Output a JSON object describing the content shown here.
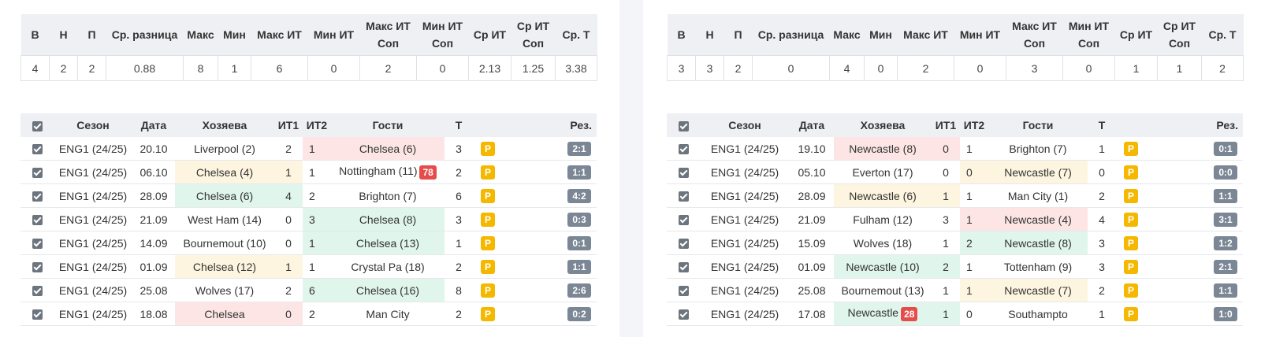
{
  "stats_headers": [
    "В",
    "Н",
    "П",
    "Ср. разница",
    "Макс",
    "Мин",
    "Макс ИТ",
    "Мин ИТ",
    "Макс ИТ Соп",
    "Мин ИТ Соп",
    "Ср ИТ",
    "Ср ИТ Соп",
    "Ср. Т"
  ],
  "match_headers": {
    "season": "Сезон",
    "date": "Дата",
    "home": "Хозяева",
    "it1": "ИТ1",
    "it2": "ИТ2",
    "away": "Гости",
    "t": "Т",
    "res": "Рез."
  },
  "colors": {
    "win": "#e0f5ec",
    "draw": "#fdf5e0",
    "loss": "#fde5e5",
    "p_badge": "#f5b800",
    "result_badge": "#7b8794",
    "minute_badge": "#e74c4c"
  },
  "left": {
    "stats": [
      "4",
      "2",
      "2",
      "0.88",
      "8",
      "1",
      "6",
      "0",
      "2",
      "0",
      "2.13",
      "1.25",
      "3.38"
    ],
    "matches": [
      {
        "season": "ENG1 (24/25)",
        "date": "20.10",
        "home": "Liverpool (2)",
        "it1": "2",
        "it2": "1",
        "away": "Chelsea (6)",
        "minute": "",
        "t": "3",
        "p": "P",
        "res": "2:1",
        "hl": "away",
        "hlc": "red"
      },
      {
        "season": "ENG1 (24/25)",
        "date": "06.10",
        "home": "Chelsea (4)",
        "it1": "1",
        "it2": "1",
        "away": "Nottingham (11)",
        "minute": "78",
        "t": "2",
        "p": "P",
        "res": "1:1",
        "hl": "home",
        "hlc": "yellow"
      },
      {
        "season": "ENG1 (24/25)",
        "date": "28.09",
        "home": "Chelsea (6)",
        "it1": "4",
        "it2": "2",
        "away": "Brighton (7)",
        "minute": "",
        "t": "6",
        "p": "P",
        "res": "4:2",
        "hl": "home",
        "hlc": "green"
      },
      {
        "season": "ENG1 (24/25)",
        "date": "21.09",
        "home": "West Ham (14)",
        "it1": "0",
        "it2": "3",
        "away": "Chelsea (8)",
        "minute": "",
        "t": "3",
        "p": "P",
        "res": "0:3",
        "hl": "away",
        "hlc": "green"
      },
      {
        "season": "ENG1 (24/25)",
        "date": "14.09",
        "home": "Bournemout (10)",
        "it1": "0",
        "it2": "1",
        "away": "Chelsea (13)",
        "minute": "",
        "t": "1",
        "p": "P",
        "res": "0:1",
        "hl": "away",
        "hlc": "green"
      },
      {
        "season": "ENG1 (24/25)",
        "date": "01.09",
        "home": "Chelsea (12)",
        "it1": "1",
        "it2": "1",
        "away": "Crystal Pa (18)",
        "minute": "",
        "t": "2",
        "p": "P",
        "res": "1:1",
        "hl": "home",
        "hlc": "yellow"
      },
      {
        "season": "ENG1 (24/25)",
        "date": "25.08",
        "home": "Wolves (17)",
        "it1": "2",
        "it2": "6",
        "away": "Chelsea (16)",
        "minute": "",
        "t": "8",
        "p": "P",
        "res": "2:6",
        "hl": "away",
        "hlc": "green"
      },
      {
        "season": "ENG1 (24/25)",
        "date": "18.08",
        "home": "Chelsea",
        "it1": "0",
        "it2": "2",
        "away": "Man City",
        "minute": "",
        "t": "2",
        "p": "P",
        "res": "0:2",
        "hl": "home",
        "hlc": "red"
      }
    ]
  },
  "right": {
    "stats": [
      "3",
      "3",
      "2",
      "0",
      "4",
      "0",
      "2",
      "0",
      "3",
      "0",
      "1",
      "1",
      "2"
    ],
    "matches": [
      {
        "season": "ENG1 (24/25)",
        "date": "19.10",
        "home": "Newcastle (8)",
        "it1": "0",
        "it2": "1",
        "away": "Brighton (7)",
        "minute": "",
        "t": "1",
        "p": "P",
        "res": "0:1",
        "hl": "home",
        "hlc": "red"
      },
      {
        "season": "ENG1 (24/25)",
        "date": "05.10",
        "home": "Everton (17)",
        "it1": "0",
        "it2": "0",
        "away": "Newcastle (7)",
        "minute": "",
        "t": "0",
        "p": "P",
        "res": "0:0",
        "hl": "away",
        "hlc": "yellow"
      },
      {
        "season": "ENG1 (24/25)",
        "date": "28.09",
        "home": "Newcastle (6)",
        "it1": "1",
        "it2": "1",
        "away": "Man City (1)",
        "minute": "",
        "t": "2",
        "p": "P",
        "res": "1:1",
        "hl": "home",
        "hlc": "yellow"
      },
      {
        "season": "ENG1 (24/25)",
        "date": "21.09",
        "home": "Fulham (12)",
        "it1": "3",
        "it2": "1",
        "away": "Newcastle (4)",
        "minute": "",
        "t": "4",
        "p": "P",
        "res": "3:1",
        "hl": "away",
        "hlc": "red"
      },
      {
        "season": "ENG1 (24/25)",
        "date": "15.09",
        "home": "Wolves (18)",
        "it1": "1",
        "it2": "2",
        "away": "Newcastle (8)",
        "minute": "",
        "t": "3",
        "p": "P",
        "res": "1:2",
        "hl": "away",
        "hlc": "green"
      },
      {
        "season": "ENG1 (24/25)",
        "date": "01.09",
        "home": "Newcastle (10)",
        "it1": "2",
        "it2": "1",
        "away": "Tottenham (9)",
        "minute": "",
        "t": "3",
        "p": "P",
        "res": "2:1",
        "hl": "home",
        "hlc": "green"
      },
      {
        "season": "ENG1 (24/25)",
        "date": "25.08",
        "home": "Bournemout (13)",
        "it1": "1",
        "it2": "1",
        "away": "Newcastle (7)",
        "minute": "",
        "t": "2",
        "p": "P",
        "res": "1:1",
        "hl": "away",
        "hlc": "yellow"
      },
      {
        "season": "ENG1 (24/25)",
        "date": "17.08",
        "home": "Newcastle",
        "it1": "1",
        "it2": "0",
        "away": "Southampto",
        "minute": "28",
        "mside": "home",
        "t": "1",
        "p": "P",
        "res": "1:0",
        "hl": "home",
        "hlc": "green"
      }
    ]
  }
}
